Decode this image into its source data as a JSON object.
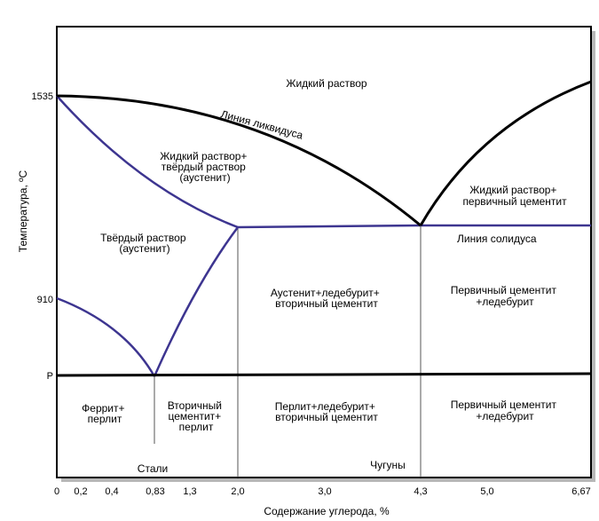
{
  "chart_data": {
    "type": "phase-diagram",
    "xlabel": "Содержание углерода, %",
    "ylabel": "Температура, ºС",
    "x_ticks": [
      "0",
      "0,2",
      "0,4",
      "0,83",
      "1,3",
      "2,0",
      "3,0",
      "4,3",
      "5,0",
      "6,67"
    ],
    "y_ticks": [
      "1535",
      "910",
      "P"
    ],
    "curves": [
      {
        "name": "Линия ликвидуса",
        "color": "#000000"
      },
      {
        "name": "Линия солидуса",
        "color": "#3d3590"
      }
    ],
    "regions": {
      "liquid": [
        "Жидкий раствор"
      ],
      "liquid_austenite": [
        "Жидкий раствор+",
        "твёрдый раствор",
        "(аустенит)"
      ],
      "liquid_cementite": [
        "Жидкий раствор+",
        "первичный цементит"
      ],
      "austenite": [
        "Твёрдый раствор",
        "(аустенит)"
      ],
      "austenite_ledeburite": [
        "Аустенит+ледебурит+",
        "вторичный цементит"
      ],
      "primary_cementite_upper": [
        "Первичный цементит",
        "+ледебурит"
      ],
      "ferrite_pearlite": [
        "Феррит+",
        "перлит"
      ],
      "secondary_cementite_pearlite": [
        "Вторичный",
        "цементит+",
        "перлит"
      ],
      "pearlite_ledeburite": [
        "Перлит+ледебурит+",
        "вторичный цементит"
      ],
      "primary_cementite_lower": [
        "Первичный цементит",
        "+ледебурит"
      ]
    },
    "groups": {
      "steels": "Стали",
      "cast_irons": "Чугуны"
    },
    "colors": {
      "liquidus": "#000000",
      "phase_lines": "#3d3590",
      "frame": "#000000"
    }
  }
}
